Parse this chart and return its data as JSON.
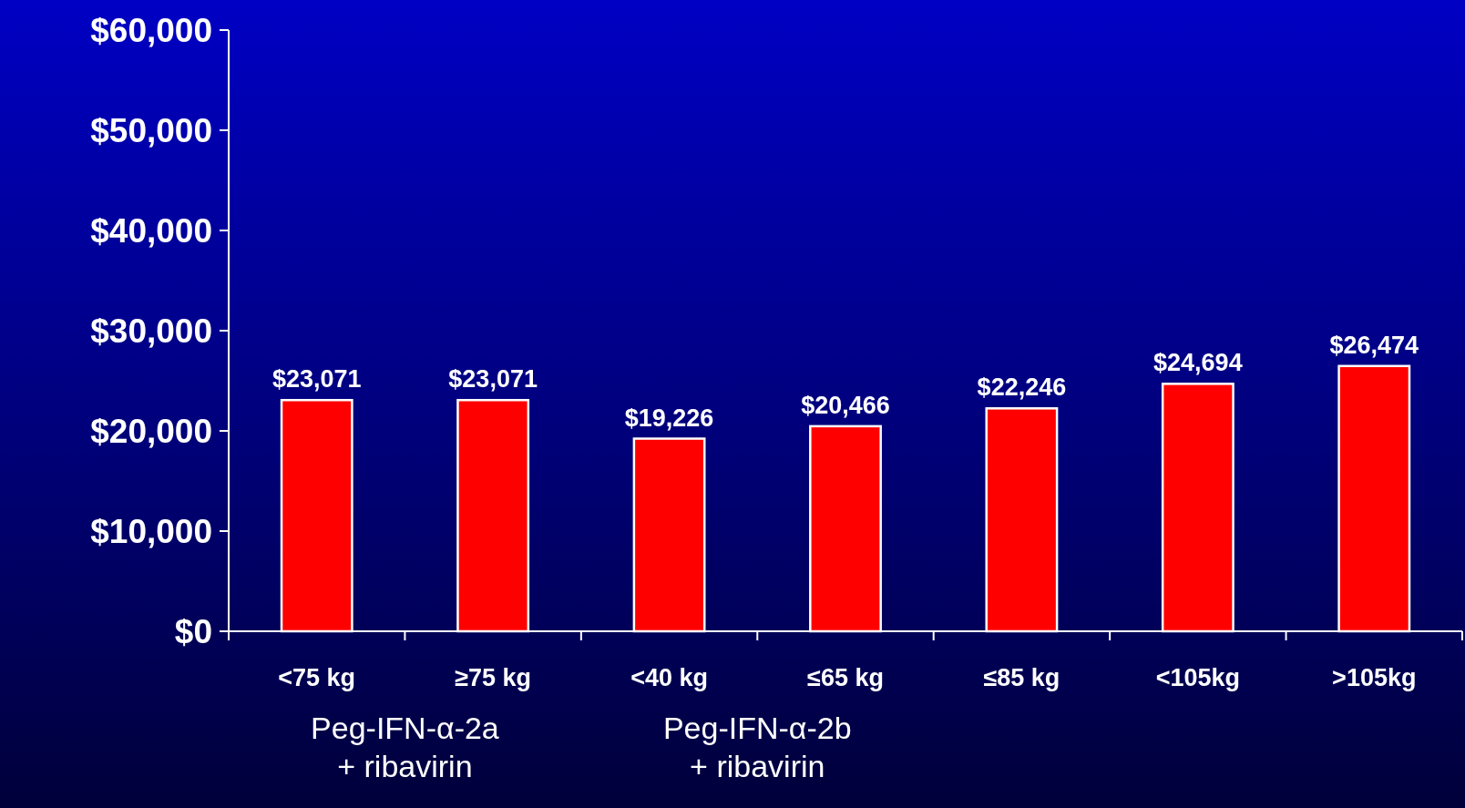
{
  "chart_data": {
    "type": "bar",
    "categories": [
      "<75 kg",
      "≥75 kg",
      "<40 kg",
      "≤65 kg",
      "≤85 kg",
      "<105kg",
      ">105kg"
    ],
    "values": [
      23071,
      23071,
      19226,
      20466,
      22246,
      24694,
      26474
    ],
    "value_labels": [
      "$23,071",
      "$23,071",
      "$19,226",
      "$20,466",
      "$22,246",
      "$24,694",
      "$26,474"
    ],
    "color": "#ff0000",
    "ylim": [
      0,
      60000
    ],
    "yticks": [
      {
        "value": 0,
        "label": "$0"
      },
      {
        "value": 10000,
        "label": "$10,000"
      },
      {
        "value": 20000,
        "label": "$20,000"
      },
      {
        "value": 30000,
        "label": "$30,000"
      },
      {
        "value": 40000,
        "label": "$40,000"
      },
      {
        "value": 50000,
        "label": "$50,000"
      },
      {
        "value": 60000,
        "label": "$60,000"
      }
    ],
    "grid": false,
    "annotations": [
      "Peg-IFN-α-2a\n+ ribavirin",
      "Peg-IFN-α-2b\n+ ribavirin"
    ]
  }
}
